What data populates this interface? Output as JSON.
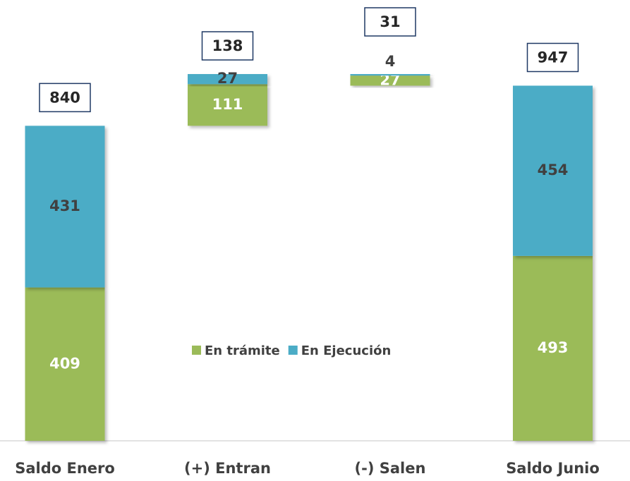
{
  "chart_data": {
    "type": "waterfall",
    "categories": [
      "Saldo Enero",
      "(+) Entran",
      "(-) Salen",
      "Saldo Junio"
    ],
    "series": [
      {
        "name": "En trámite",
        "color": "#9bbb59",
        "values": [
          409,
          111,
          27,
          493
        ]
      },
      {
        "name": "En Ejecución",
        "color": "#4bacc6",
        "values": [
          431,
          27,
          4,
          454
        ]
      }
    ],
    "totals": [
      840,
      138,
      31,
      947
    ]
  }
}
